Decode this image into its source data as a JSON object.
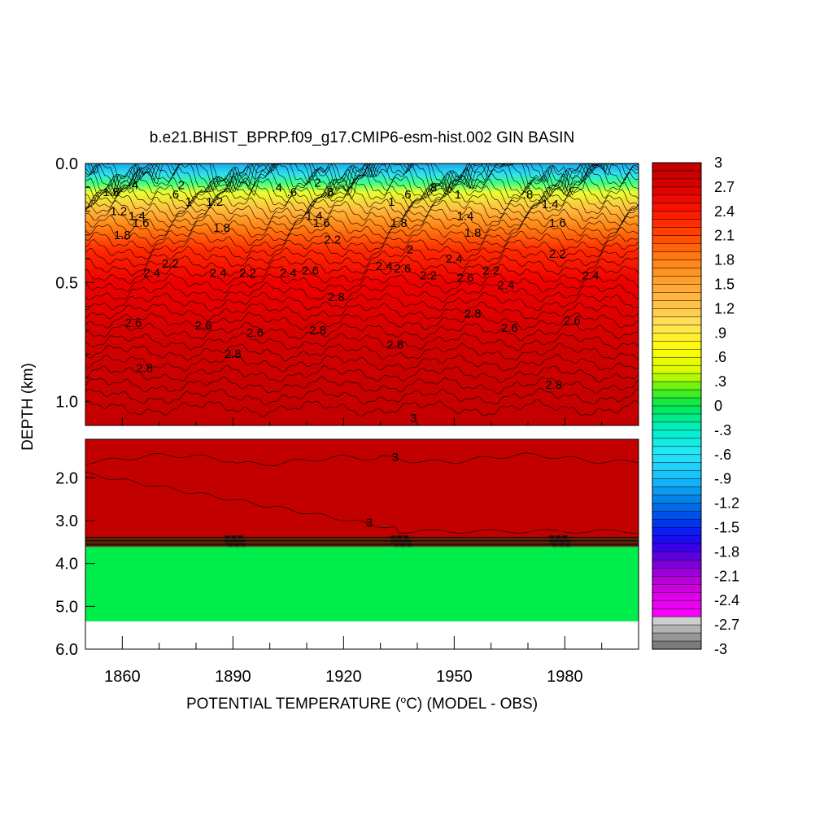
{
  "chart_data": {
    "type": "heatmap",
    "title": "b.e21.BHIST_BPRP.f09_g17.CMIP6-esm-hist.002 GIN BASIN",
    "xlabel_prefix": "POTENTIAL TEMPERATURE (",
    "xlabel_degree": "o",
    "xlabel_suffix": "C) (MODEL - OBS)",
    "ylabel": "DEPTH (km)",
    "x_range": [
      1850,
      2000
    ],
    "x_ticks": [
      "1860",
      "1890",
      "1920",
      "1950",
      "1980"
    ],
    "x_tick_values": [
      1860,
      1890,
      1920,
      1950,
      1980
    ],
    "upper_panel": {
      "y_range": [
        0,
        1.1
      ],
      "y_ticks": [
        "0.0",
        "0.5",
        "1.0"
      ],
      "y_tick_values": [
        0,
        0.5,
        1.0
      ]
    },
    "lower_panel": {
      "y_range": [
        1.1,
        6.0
      ],
      "y_ticks": [
        "2.0",
        "3.0",
        "4.0",
        "5.0",
        "6.0"
      ],
      "y_tick_values": [
        2.0,
        3.0,
        4.0,
        5.0,
        6.0
      ],
      "deep_anomaly_top_km": 3.5,
      "deep_anomaly_bottom_km": 5.35,
      "deep_anomaly_value": 0
    },
    "colorbar": {
      "min": -3,
      "max": 3,
      "step": 0.1,
      "labels": [
        "3",
        "2.7",
        "2.4",
        "2.1",
        "1.8",
        "1.5",
        "1.2",
        ".9",
        ".6",
        ".3",
        "0",
        "-.3",
        "-.6",
        "-.9",
        "-1.2",
        "-1.5",
        "-1.8",
        "-2.1",
        "-2.4",
        "-2.7",
        "-3"
      ],
      "label_values": [
        3,
        2.7,
        2.4,
        2.1,
        1.8,
        1.5,
        1.2,
        0.9,
        0.6,
        0.3,
        0,
        -0.3,
        -0.6,
        -0.9,
        -1.2,
        -1.5,
        -1.8,
        -2.1,
        -2.4,
        -2.7,
        -3
      ]
    },
    "contour_labels": [
      {
        "text": "1.8",
        "x": 1857,
        "y": 0.12
      },
      {
        "text": ".4",
        "x": 1863,
        "y": 0.09
      },
      {
        "text": "1.2",
        "x": 1859,
        "y": 0.2
      },
      {
        "text": "1.4",
        "x": 1864,
        "y": 0.22
      },
      {
        "text": "1.6",
        "x": 1865,
        "y": 0.25
      },
      {
        "text": "1.8",
        "x": 1860,
        "y": 0.3
      },
      {
        "text": "2",
        "x": 1876,
        "y": 0.09
      },
      {
        "text": ".6",
        "x": 1874,
        "y": 0.13
      },
      {
        "text": "1",
        "x": 1878,
        "y": 0.16
      },
      {
        "text": "1.2",
        "x": 1885,
        "y": 0.16
      },
      {
        "text": "2.4",
        "x": 1868,
        "y": 0.46
      },
      {
        "text": "2.2",
        "x": 1873,
        "y": 0.42
      },
      {
        "text": "1.8",
        "x": 1887,
        "y": 0.27
      },
      {
        "text": "2.4",
        "x": 1886,
        "y": 0.46
      },
      {
        "text": "2.2",
        "x": 1894,
        "y": 0.46
      },
      {
        "text": "2.6",
        "x": 1863,
        "y": 0.67
      },
      {
        "text": "2.6",
        "x": 1882,
        "y": 0.68
      },
      {
        "text": "2.6",
        "x": 1896,
        "y": 0.71
      },
      {
        "text": "2.8",
        "x": 1890,
        "y": 0.8
      },
      {
        "text": "2.8",
        "x": 1866,
        "y": 0.86
      },
      {
        "text": ".4",
        "x": 1902,
        "y": 0.1
      },
      {
        "text": ".6",
        "x": 1906,
        "y": 0.12
      },
      {
        "text": "2",
        "x": 1913,
        "y": 0.08
      },
      {
        "text": ".8",
        "x": 1916,
        "y": 0.12
      },
      {
        "text": "1.4",
        "x": 1912,
        "y": 0.22
      },
      {
        "text": "1.6",
        "x": 1914,
        "y": 0.25
      },
      {
        "text": "2.2",
        "x": 1917,
        "y": 0.32
      },
      {
        "text": "2.4",
        "x": 1905,
        "y": 0.46
      },
      {
        "text": "2.6",
        "x": 1911,
        "y": 0.45
      },
      {
        "text": "2.8",
        "x": 1918,
        "y": 0.56
      },
      {
        "text": "2.8",
        "x": 1913,
        "y": 0.7
      },
      {
        "text": "1",
        "x": 1933,
        "y": 0.16
      },
      {
        "text": "1.8",
        "x": 1935,
        "y": 0.25
      },
      {
        "text": ".6",
        "x": 1937,
        "y": 0.13
      },
      {
        "text": ".8",
        "x": 1944,
        "y": 0.1
      },
      {
        "text": "2",
        "x": 1938,
        "y": 0.36
      },
      {
        "text": "2.6",
        "x": 1936,
        "y": 0.44
      },
      {
        "text": "2.4",
        "x": 1931,
        "y": 0.43
      },
      {
        "text": "2.2",
        "x": 1943,
        "y": 0.47
      },
      {
        "text": "2.8",
        "x": 1934,
        "y": 0.76
      },
      {
        "text": "3",
        "x": 1939,
        "y": 1.07
      },
      {
        "text": "1",
        "x": 1951,
        "y": 0.13
      },
      {
        "text": "1.4",
        "x": 1953,
        "y": 0.22
      },
      {
        "text": "1.8",
        "x": 1955,
        "y": 0.29
      },
      {
        "text": "2.4",
        "x": 1950,
        "y": 0.4
      },
      {
        "text": "2.6",
        "x": 1953,
        "y": 0.48
      },
      {
        "text": "2.2",
        "x": 1960,
        "y": 0.45
      },
      {
        "text": "2.8",
        "x": 1955,
        "y": 0.63
      },
      {
        "text": "2.4",
        "x": 1964,
        "y": 0.51
      },
      {
        "text": "2.6",
        "x": 1965,
        "y": 0.69
      },
      {
        "text": ".8",
        "x": 1970,
        "y": 0.13
      },
      {
        "text": "1.4",
        "x": 1976,
        "y": 0.17
      },
      {
        "text": "1.6",
        "x": 1978,
        "y": 0.25
      },
      {
        "text": "2.2",
        "x": 1978,
        "y": 0.38
      },
      {
        "text": "2.4",
        "x": 1987,
        "y": 0.47
      },
      {
        "text": "2.6",
        "x": 1982,
        "y": 0.66
      },
      {
        "text": "2.8",
        "x": 1977,
        "y": 0.93
      },
      {
        "text": "3",
        "x": 1934,
        "y": 1.52
      },
      {
        "text": "3",
        "x": 1927,
        "y": 3.05
      }
    ]
  }
}
